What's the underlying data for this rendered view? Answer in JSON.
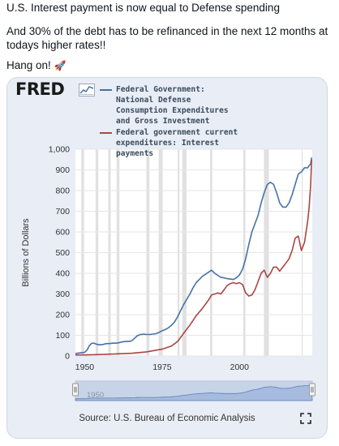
{
  "tweet": {
    "line1": "U.S. Interest payment is now equal to Defense spending",
    "line2": "And 30% of the debt has to be refinanced in the next 12 months at todays higher rates!!",
    "line3": "Hang on!",
    "rocket_icon": "rocket-icon"
  },
  "fred": {
    "logo": "FRED",
    "logo_icon": "chart-line-icon",
    "source": "Source: U.S. Bureau of Economic Analysis",
    "expand_icon": "expand-icon",
    "navigator_label": "1950"
  },
  "colors": {
    "series_defense": "#4572a7",
    "series_interest": "#aa4643",
    "recession": "#e1e1e1",
    "navigator_fill": "#a6bbdf"
  },
  "chart_data": {
    "type": "line",
    "title": "",
    "xlabel": "",
    "ylabel": "Billions of Dollars",
    "xlim": [
      1947,
      2023.5
    ],
    "ylim": [
      0,
      1000
    ],
    "yticks": [
      0,
      100,
      200,
      300,
      400,
      500,
      600,
      700,
      800,
      900,
      1000
    ],
    "ytick_labels": [
      "0",
      "100",
      "200",
      "300",
      "400",
      "500",
      "600",
      "700",
      "800",
      "900",
      "1,000"
    ],
    "xticks": [
      1950,
      1975,
      2000
    ],
    "xtick_labels": [
      "1950",
      "1975",
      "2000"
    ],
    "legend_position": "top",
    "grid": "horizontal",
    "recessions": [
      [
        1948.9,
        1949.8
      ],
      [
        1953.5,
        1954.4
      ],
      [
        1957.6,
        1958.4
      ],
      [
        1960.3,
        1961.2
      ],
      [
        1969.9,
        1970.9
      ],
      [
        1973.9,
        1975.2
      ],
      [
        1980.0,
        1980.6
      ],
      [
        1981.5,
        1982.9
      ],
      [
        1990.5,
        1991.2
      ],
      [
        2001.2,
        2001.9
      ],
      [
        2007.9,
        2009.5
      ],
      [
        2020.1,
        2020.4
      ]
    ],
    "series": [
      {
        "name": "Federal Government: National Defense Consumption Expenditures and Gross Investment",
        "color": "#4572a7",
        "x": [
          1947,
          1948,
          1949,
          1950,
          1950.8,
          1951.5,
          1952,
          1952.5,
          1953,
          1954,
          1955,
          1956,
          1957,
          1958,
          1959,
          1960,
          1961,
          1962,
          1963,
          1964,
          1965,
          1966,
          1967,
          1968,
          1969,
          1970,
          1971,
          1972,
          1973,
          1974,
          1975,
          1976,
          1977,
          1978,
          1979,
          1980,
          1981,
          1982,
          1983,
          1984,
          1985,
          1986,
          1987,
          1988,
          1989,
          1990,
          1991,
          1992,
          1993,
          1994,
          1995,
          1996,
          1997,
          1998,
          1999,
          2000,
          2001,
          2002,
          2003,
          2004,
          2005,
          2006,
          2007,
          2008,
          2009,
          2010,
          2011,
          2012,
          2013,
          2014,
          2015,
          2016,
          2017,
          2018,
          2019,
          2020,
          2021,
          2022,
          2023,
          2023.3
        ],
        "values": [
          12,
          14,
          16,
          18,
          30,
          50,
          58,
          62,
          62,
          56,
          54,
          56,
          60,
          60,
          62,
          62,
          64,
          68,
          70,
          70,
          72,
          84,
          98,
          104,
          106,
          104,
          104,
          106,
          108,
          114,
          122,
          128,
          136,
          148,
          164,
          190,
          220,
          250,
          275,
          300,
          330,
          355,
          370,
          385,
          395,
          405,
          415,
          400,
          390,
          380,
          378,
          374,
          372,
          370,
          378,
          392,
          420,
          470,
          540,
          600,
          640,
          680,
          740,
          790,
          830,
          840,
          830,
          790,
          740,
          720,
          720,
          740,
          780,
          830,
          880,
          890,
          910,
          910,
          930,
          960
        ]
      },
      {
        "name": "Federal government current expenditures: Interest payments",
        "color": "#aa4643",
        "x": [
          1947,
          1950,
          1955,
          1960,
          1965,
          1970,
          1975,
          1978,
          1980,
          1982,
          1984,
          1986,
          1988,
          1990,
          1991,
          1992,
          1993,
          1994,
          1995,
          1996,
          1997,
          1998,
          1999,
          2000,
          2001,
          2002,
          2003,
          2004,
          2005,
          2006,
          2007,
          2008,
          2009,
          2010,
          2011,
          2012,
          2013,
          2014,
          2015,
          2016,
          2017,
          2018,
          2019,
          2020,
          2021,
          2022,
          2022.5,
          2023,
          2023.3
        ],
        "values": [
          5,
          5,
          7,
          10,
          13,
          20,
          33,
          48,
          70,
          110,
          150,
          195,
          230,
          270,
          295,
          300,
          305,
          300,
          320,
          340,
          350,
          355,
          350,
          355,
          345,
          305,
          290,
          295,
          320,
          360,
          400,
          415,
          380,
          400,
          430,
          430,
          410,
          430,
          450,
          470,
          510,
          570,
          580,
          510,
          550,
          650,
          720,
          830,
          950
        ]
      }
    ]
  }
}
